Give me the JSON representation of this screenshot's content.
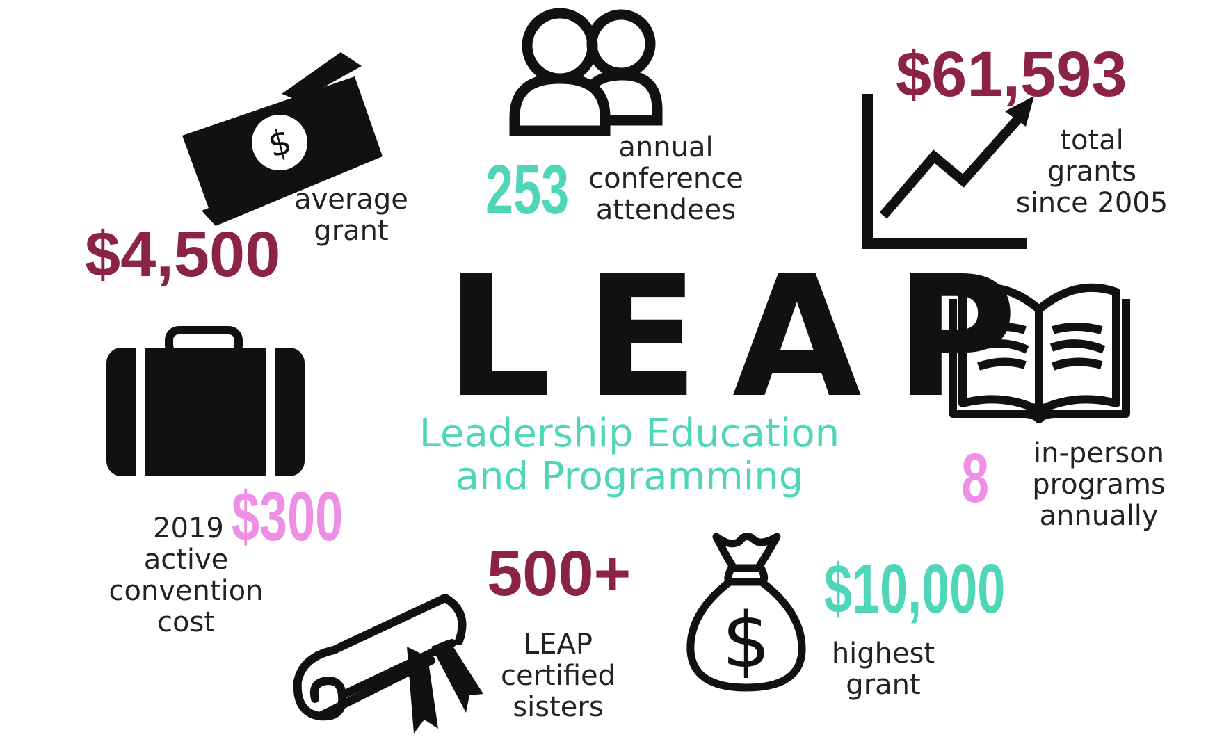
{
  "center": {
    "title": "LEAP",
    "subtitle_line1": "Leadership Education",
    "subtitle_line2": "and Programming"
  },
  "stats": {
    "average_grant": {
      "value": "$4,500",
      "label_line1": "average",
      "label_line2": "grant"
    },
    "attendees": {
      "value": "253",
      "label_line1": "annual",
      "label_line2": "conference",
      "label_line3": "attendees"
    },
    "total_grants": {
      "value": "$61,593",
      "label_line1": "total",
      "label_line2": "grants",
      "label_line3": "since 2005"
    },
    "programs": {
      "value": "8",
      "label_line1": "in-person",
      "label_line2": "programs",
      "label_line3": "annually"
    },
    "convention_cost": {
      "value": "$300",
      "label_line1": "2019",
      "label_line2": "active",
      "label_line3": "convention",
      "label_line4": "cost"
    },
    "certified": {
      "value": "500+",
      "label_line1": "LEAP",
      "label_line2": "certified",
      "label_line3": "sisters"
    },
    "highest_grant": {
      "value": "$10,000",
      "label_line1": "highest",
      "label_line2": "grant"
    }
  },
  "colors": {
    "maroon": "#8b2346",
    "teal": "#4fd6b8",
    "pink": "#ee8fe6",
    "ink": "#111111"
  },
  "icons": [
    "money-bill-icon",
    "people-icon",
    "growth-chart-icon",
    "open-book-icon",
    "suitcase-icon",
    "diploma-scroll-icon",
    "money-bag-icon"
  ]
}
